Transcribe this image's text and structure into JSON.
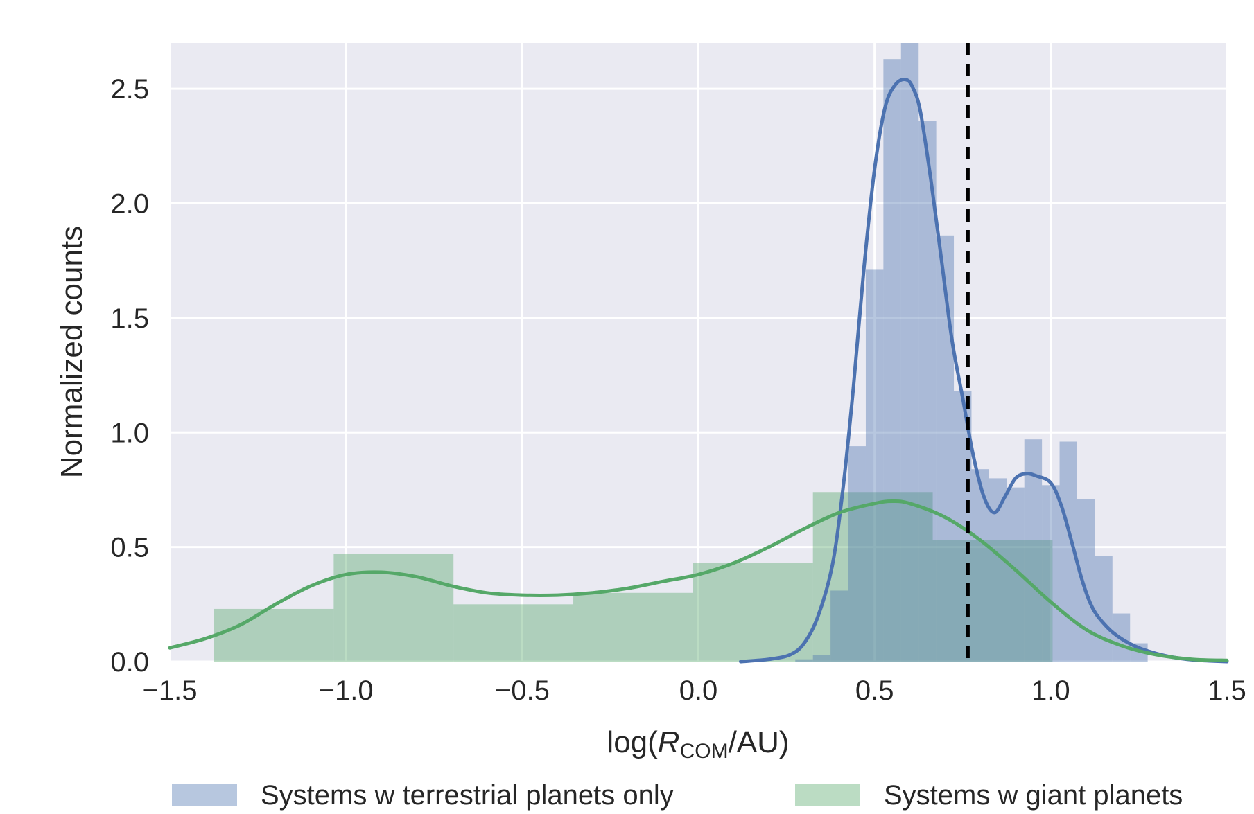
{
  "chart_data": {
    "type": "bar",
    "xlabel": {
      "prefix": "log(",
      "var": "R",
      "sub": "COM",
      "suffix": "/AU)"
    },
    "ylabel": "Normalized counts",
    "xlim": [
      -1.5,
      1.5
    ],
    "ylim": [
      0,
      2.7
    ],
    "xticks": [
      -1.5,
      -1.0,
      -0.5,
      0.0,
      0.5,
      1.0,
      1.5
    ],
    "xtick_labels": [
      "−1.5",
      "−1.0",
      "−0.5",
      "0.0",
      "0.5",
      "1.0",
      "1.5"
    ],
    "yticks": [
      0.0,
      0.5,
      1.0,
      1.5,
      2.0,
      2.5
    ],
    "ytick_labels": [
      "0.0",
      "0.5",
      "1.0",
      "1.5",
      "2.0",
      "2.5"
    ],
    "grid": true,
    "legend_position": "bottom",
    "vline": {
      "x": 0.765,
      "style": "dashed",
      "color": "#000000"
    },
    "series": [
      {
        "name": "Systems w terrestrial planets only",
        "color": "#4c72b0",
        "bin_edges": [
          0.275,
          0.325,
          0.375,
          0.425,
          0.475,
          0.525,
          0.575,
          0.625,
          0.675,
          0.725,
          0.775,
          0.825,
          0.875,
          0.925,
          0.975,
          1.025,
          1.075,
          1.125,
          1.175,
          1.225,
          1.275
        ],
        "values": [
          0.01,
          0.03,
          0.31,
          0.94,
          1.71,
          2.63,
          2.7,
          2.36,
          1.86,
          1.18,
          0.84,
          0.8,
          0.76,
          0.97,
          0.77,
          0.96,
          0.71,
          0.46,
          0.21,
          0.08
        ],
        "kde": {
          "x": [
            0.12,
            0.2,
            0.26,
            0.3,
            0.34,
            0.38,
            0.41,
            0.44,
            0.47,
            0.5,
            0.53,
            0.56,
            0.59,
            0.61,
            0.63,
            0.66,
            0.69,
            0.72,
            0.75,
            0.78,
            0.81,
            0.84,
            0.87,
            0.9,
            0.93,
            0.96,
            1.0,
            1.03,
            1.06,
            1.09,
            1.12,
            1.16,
            1.2,
            1.25,
            1.3,
            1.35,
            1.4,
            1.45,
            1.5
          ],
          "y": [
            0.0,
            0.01,
            0.03,
            0.08,
            0.2,
            0.42,
            0.75,
            1.2,
            1.72,
            2.15,
            2.42,
            2.52,
            2.54,
            2.5,
            2.4,
            2.1,
            1.75,
            1.4,
            1.15,
            0.9,
            0.72,
            0.65,
            0.72,
            0.8,
            0.82,
            0.81,
            0.78,
            0.68,
            0.52,
            0.35,
            0.23,
            0.15,
            0.1,
            0.06,
            0.035,
            0.018,
            0.008,
            0.003,
            0.0
          ]
        }
      },
      {
        "name": "Systems w giant planets",
        "color": "#55a868",
        "bin_edges": [
          -1.375,
          -1.035,
          -0.695,
          -0.355,
          -0.015,
          0.325,
          0.665,
          1.005
        ],
        "values": [
          0.23,
          0.47,
          0.25,
          0.3,
          0.43,
          0.74,
          0.53
        ],
        "kde": {
          "x": [
            -1.5,
            -1.4,
            -1.3,
            -1.2,
            -1.1,
            -1.0,
            -0.9,
            -0.8,
            -0.7,
            -0.6,
            -0.5,
            -0.4,
            -0.3,
            -0.2,
            -0.1,
            0.0,
            0.1,
            0.2,
            0.3,
            0.4,
            0.5,
            0.55,
            0.6,
            0.7,
            0.8,
            0.9,
            1.0,
            1.1,
            1.2,
            1.3,
            1.4,
            1.5
          ],
          "y": [
            0.06,
            0.1,
            0.16,
            0.25,
            0.33,
            0.38,
            0.39,
            0.37,
            0.33,
            0.3,
            0.29,
            0.29,
            0.3,
            0.32,
            0.35,
            0.38,
            0.43,
            0.5,
            0.58,
            0.65,
            0.69,
            0.7,
            0.69,
            0.63,
            0.53,
            0.4,
            0.26,
            0.14,
            0.07,
            0.03,
            0.01,
            0.005
          ]
        }
      }
    ]
  }
}
